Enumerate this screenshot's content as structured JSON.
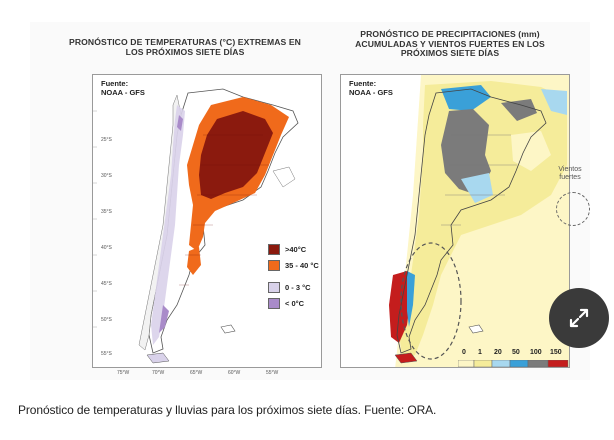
{
  "figure": {
    "left_title": "PRONÓSTICO DE TEMPERATURAS (°C) EXTREMAS EN LOS PRÓXIMOS SIETE DÍAS",
    "right_title": "PRONÓSTICO DE PRECIPITACIONES (mm) ACUMULADAS Y VIENTOS FUERTES EN LOS PRÓXIMOS SIETE DÍAS",
    "source_line1": "Fuente:",
    "source_line2": "NOAA - GFS",
    "latitudes": [
      "25°S",
      "30°S",
      "35°S",
      "40°S",
      "45°S",
      "50°S",
      "55°S"
    ],
    "longitudes": [
      "75°W",
      "70°W",
      "65°W",
      "60°W",
      "55°W"
    ],
    "temperature_legend": [
      {
        "label": ">40°C",
        "color": "#8b1a0e"
      },
      {
        "label": "35 - 40 °C",
        "color": "#f06a1b"
      },
      {
        "label": "0 - 3 °C",
        "color": "#d9d2ea"
      },
      {
        "label": "< 0°C",
        "color": "#a98bc9"
      }
    ],
    "precipitation_scale": [
      {
        "label": "0",
        "color": "#fdf6c6"
      },
      {
        "label": "1",
        "color": "#f5ec9a"
      },
      {
        "label": "20",
        "color": "#a8d8ef"
      },
      {
        "label": "50",
        "color": "#3aa0d8"
      },
      {
        "label": "100",
        "color": "#7b7b7b"
      },
      {
        "label": "150",
        "color": "#c41d1d"
      }
    ],
    "wind_note_line1": "Vientos",
    "wind_note_line2": "fuertes"
  },
  "caption": "Pronóstico de temperaturas y lluvias para los próximos siete días. Fuente: ORA.",
  "colors": {
    "hot": "#8b1a0e",
    "warm": "#f06a1b",
    "cool": "#d9d2ea",
    "cold": "#a98bc9",
    "land": "#ffffff",
    "border": "#555555"
  }
}
